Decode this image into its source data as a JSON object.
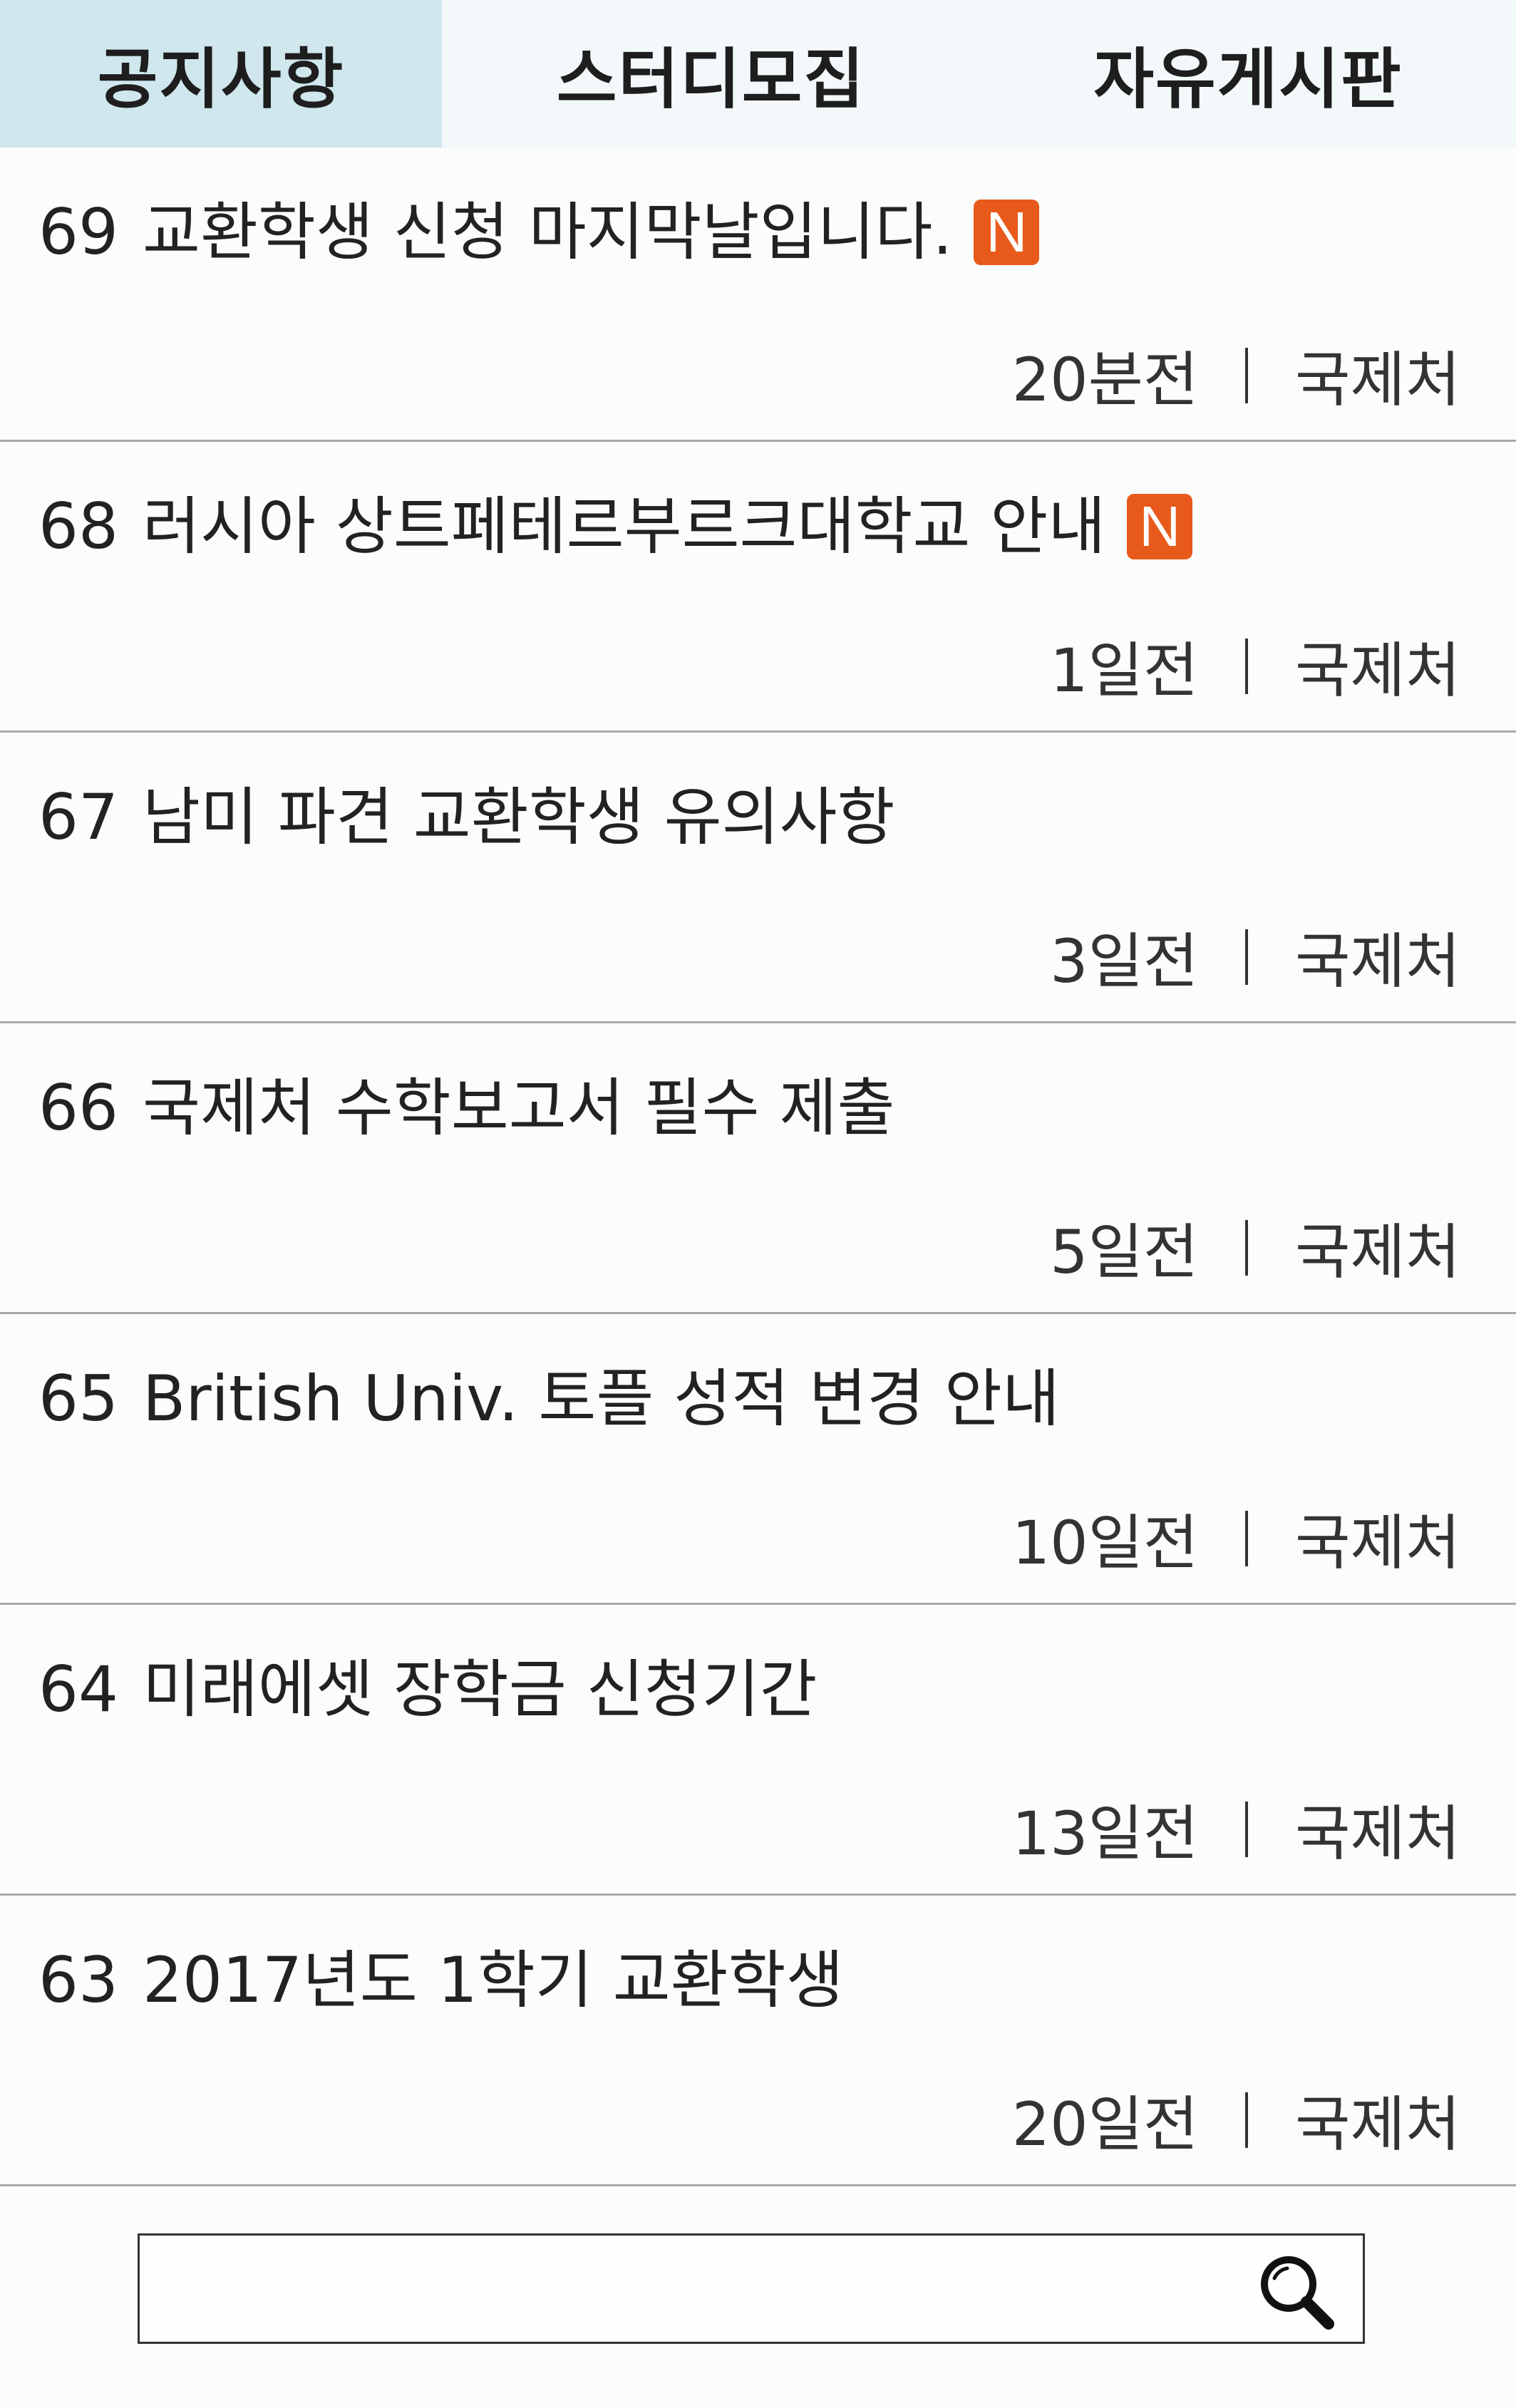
{
  "tabs": [
    {
      "label": "공지사항"
    },
    {
      "label": "스터디모집"
    },
    {
      "label": "자유게시판"
    }
  ],
  "new_badge": "N",
  "colors": {
    "active_tab": "#cfe7ed",
    "inactive_tab": "#f3f9fa",
    "new_badge": "#e85a1c",
    "divider": "#a9a9a9"
  },
  "notices": [
    {
      "number": "69",
      "title": "교환학생 신청 마지막날입니다.",
      "is_new": true,
      "time": "20분전",
      "author": "국제처"
    },
    {
      "number": "68",
      "title": "러시아 상트페테르부르크대학교 안내",
      "is_new": true,
      "time": "1일전",
      "author": "국제처"
    },
    {
      "number": "67",
      "title": "남미 파견 교환학생 유의사항",
      "is_new": false,
      "time": "3일전",
      "author": "국제처"
    },
    {
      "number": "66",
      "title": "국제처 수학보고서 필수 제출",
      "is_new": false,
      "time": "5일전",
      "author": "국제처"
    },
    {
      "number": "65",
      "title": "British Univ. 토플 성적 변경 안내",
      "is_new": false,
      "time": "10일전",
      "author": "국제처"
    },
    {
      "number": "64",
      "title": "미래에셋 장학금 신청기간",
      "is_new": false,
      "time": "13일전",
      "author": "국제처"
    },
    {
      "number": "63",
      "title": "2017년도 1학기 교환학생",
      "is_new": false,
      "time": "20일전",
      "author": "국제처"
    }
  ],
  "search": {
    "value": "",
    "placeholder": "",
    "icon": "search-icon"
  }
}
